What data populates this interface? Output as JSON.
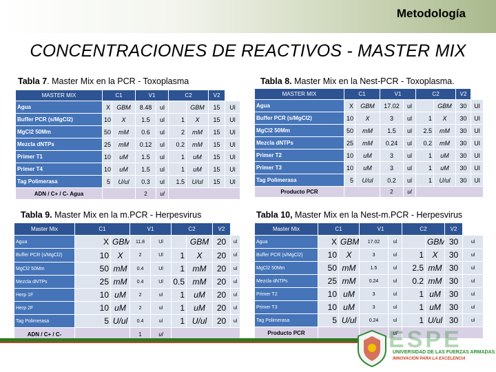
{
  "header": {
    "section": "Metodología"
  },
  "title": "CONCENTRACIONES DE REACTIVOS - MASTER MIX",
  "tables": [
    {
      "caption_bold": "Tabla 7",
      "caption_rest": ". Master Mix en la PCR - Toxoplasma",
      "headers": [
        "MASTER MIX",
        "",
        "C1",
        "",
        "V1",
        "",
        "C2",
        "",
        "V2",
        ""
      ],
      "rows": [
        [
          "Agua",
          "X",
          "GBM",
          "8.48",
          "ul",
          "",
          "GBM",
          "15",
          "Ul"
        ],
        [
          "Buffer PCR (s/MgCl2)",
          "10",
          "X",
          "1.5",
          "ul",
          "1",
          "X",
          "15",
          "Ul"
        ],
        [
          "MgCl2 50Mm",
          "50",
          "mM",
          "0.6",
          "ul",
          "2",
          "mM",
          "15",
          "Ul"
        ],
        [
          "Mezcla dNTPs",
          "25",
          "mM",
          "0.12",
          "ul",
          "0.2",
          "mM",
          "15",
          "Ul"
        ],
        [
          "Primer T1",
          "10",
          "uM",
          "1.5",
          "ul",
          "1",
          "uM",
          "15",
          "Ul"
        ],
        [
          "Primer T4",
          "10",
          "uM",
          "1.5",
          "ul",
          "1",
          "uM",
          "15",
          "Ul"
        ],
        [
          "Tag Polimerasa",
          "5",
          "U/ul",
          "0.3",
          "ul",
          "1.5",
          "U/ul",
          "15",
          "Ul"
        ]
      ],
      "footer": {
        "label": "ADN / C+ / C- Agua",
        "value": "2",
        "unit": "ul"
      }
    },
    {
      "caption_bold": "Tabla 8.",
      "caption_rest": " Master Mix en la Nest-PCR - Toxoplasma.",
      "headers": [
        "MASTER MIX",
        "",
        "C1",
        "",
        "V1",
        "",
        "C2",
        "",
        "V2",
        ""
      ],
      "rows": [
        [
          "Agua",
          "X",
          "GBM",
          "17.02",
          "ul",
          "",
          "GBM",
          "30",
          "Ul"
        ],
        [
          "Buffer PCR (s/MgCl2)",
          "10",
          "X",
          "3",
          "ul",
          "1",
          "X",
          "30",
          "Ul"
        ],
        [
          "MgCl2 50Mm",
          "50",
          "mM",
          "1.5",
          "ul",
          "2.5",
          "mM",
          "30",
          "Ul"
        ],
        [
          "Mezcla dNTPs",
          "25",
          "mM",
          "0.24",
          "ul",
          "0.2",
          "mM",
          "30",
          "Ul"
        ],
        [
          "Primer T2",
          "10",
          "uM",
          "3",
          "ul",
          "1",
          "uM",
          "30",
          "Ul"
        ],
        [
          "Primer T3",
          "10",
          "uM",
          "3",
          "ul",
          "1",
          "uM",
          "30",
          "Ul"
        ],
        [
          "Tag Polimerasa",
          "5",
          "U/ul",
          "0.2",
          "ul",
          "1",
          "U/ul",
          "30",
          "Ul"
        ]
      ],
      "footer": {
        "label": "Producto PCR",
        "value": "2",
        "unit": "ul"
      }
    },
    {
      "caption_bold": "Tabla 9.",
      "caption_rest": " Master Mix en la m.PCR - Herpesvirus",
      "headers": [
        "Master Mix",
        "",
        "C1",
        "",
        "V1",
        "",
        "C2",
        "",
        "V2",
        ""
      ],
      "rows": [
        [
          "Agua",
          "X",
          "GBM",
          "11.8",
          "Ul",
          "",
          "GBM",
          "20",
          "ul"
        ],
        [
          "Buffer PCR (s/MgCl2)",
          "10",
          "X",
          "2",
          "Ul",
          "1",
          "X",
          "20",
          "ul"
        ],
        [
          "MgCl2 50Mm",
          "50",
          "mM",
          "0.4",
          "Ul",
          "1",
          "mM",
          "20",
          "ul"
        ],
        [
          "Mezcla dNTPs",
          "25",
          "mM",
          "0.4",
          "Ul",
          "0.5",
          "mM",
          "20",
          "ul"
        ],
        [
          "Herp 1F",
          "10",
          "uM",
          "2",
          "ul",
          "1",
          "uM",
          "20",
          "ul"
        ],
        [
          "Herp 2F",
          "10",
          "uM",
          "2",
          "ul",
          "1",
          "uM",
          "20",
          "ul"
        ],
        [
          "Tag Polimerasa",
          "5",
          "U/ul",
          "0.4",
          "ul",
          "1",
          "U/ul",
          "20",
          "ul"
        ]
      ],
      "footer": {
        "label": "ADN / C+ / C-",
        "value": "1",
        "unit": "ul"
      }
    },
    {
      "caption_bold": "Tabla 10,",
      "caption_rest": " Master Mix en la Nest-m.PCR - Herpesvirus",
      "headers": [
        "Master Mix",
        "",
        "C1",
        "",
        "V1",
        "",
        "C2",
        "",
        "V2",
        ""
      ],
      "rows": [
        [
          "Agua",
          "X",
          "GBM",
          "17.02",
          "ul",
          "",
          "GBM",
          "30",
          "ul"
        ],
        [
          "Buffer PCR (s/MgCl2)",
          "10",
          "X",
          "3",
          "ul",
          "1",
          "X",
          "30",
          "ul"
        ],
        [
          "MgCl2 50Mm",
          "50",
          "mM",
          "1.5",
          "ul",
          "2.5",
          "mM",
          "30",
          "ul"
        ],
        [
          "Mezcla dNTPs",
          "25",
          "mM",
          "0.24",
          "ul",
          "0.2",
          "mM",
          "30",
          "ul"
        ],
        [
          "Primer T2",
          "10",
          "uM",
          "3",
          "ul",
          "1",
          "uM",
          "30",
          "ul"
        ],
        [
          "Primer T3",
          "10",
          "uM",
          "3",
          "ul",
          "1",
          "uM",
          "30",
          "ul"
        ],
        [
          "Tag Polimerasa",
          "5",
          "U/ul",
          "0.24",
          "ul",
          "1",
          "U/ul",
          "30",
          "ul"
        ]
      ],
      "footer": {
        "label": "Producto PCR",
        "value": "2",
        "unit": "ul"
      }
    }
  ],
  "logo": {
    "word": "ESPE",
    "line1": "UNIVERSIDAD DE LAS FUERZAS ARMADAS",
    "line2": "INNOVACIÓN PARA LA EXCELENCIA"
  }
}
